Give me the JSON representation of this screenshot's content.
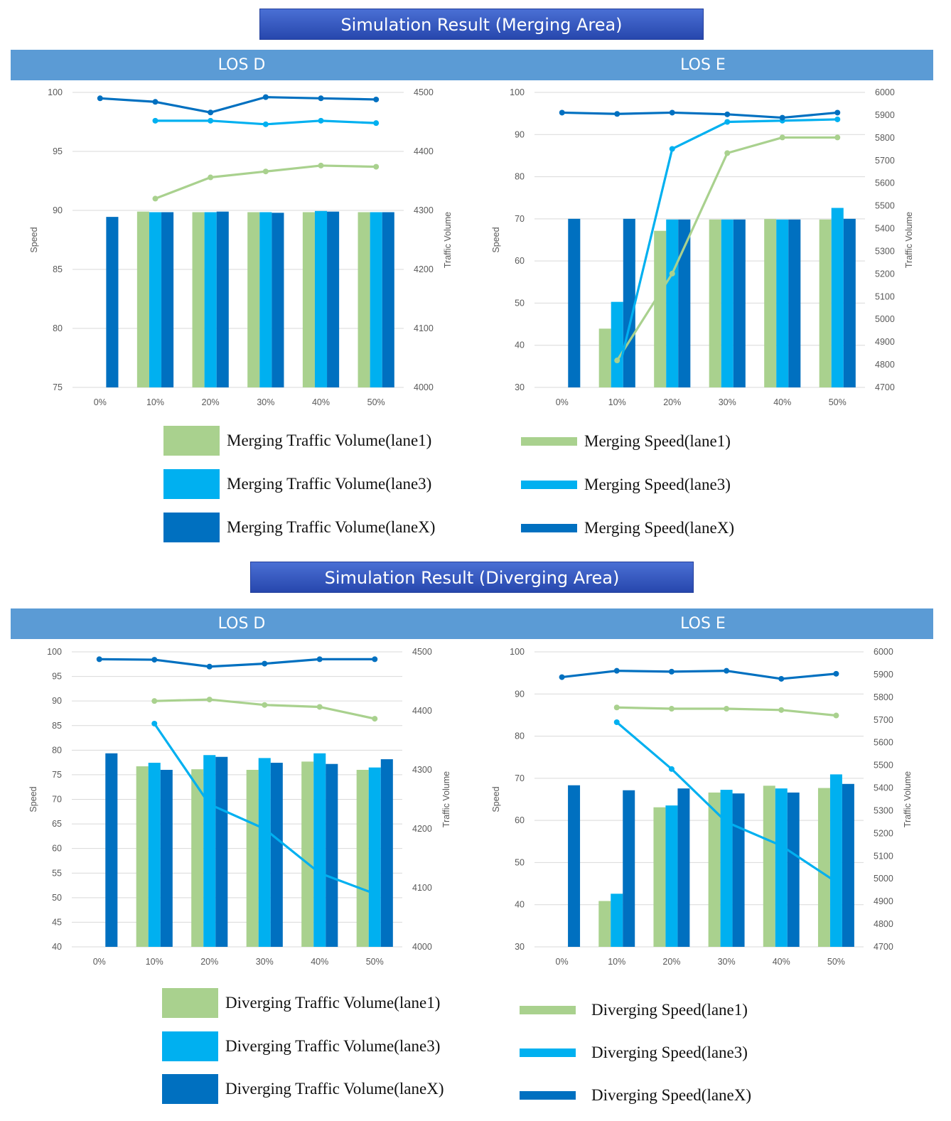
{
  "colors": {
    "lane1": "#a9d18e",
    "lane3": "#00b0f0",
    "laneX": "#0070c0"
  },
  "sections": [
    {
      "title": "Simulation Result (Merging Area)",
      "los_labels": [
        "LOS D",
        "LOS E"
      ],
      "legend": {
        "bars": [
          "Merging Traffic Volume(lane1)",
          "Merging Traffic Volume(lane3)",
          "Merging Traffic Volume(laneX)"
        ],
        "lines": [
          "Merging Speed(lane1)",
          "Merging Speed(lane3)",
          "Merging Speed(laneX)"
        ]
      }
    },
    {
      "title": "Simulation Result (Diverging Area)",
      "los_labels": [
        "LOS D",
        "LOS E"
      ],
      "legend": {
        "bars": [
          "Diverging Traffic Volume(lane1)",
          "Diverging Traffic Volume(lane3)",
          "Diverging Traffic Volume(laneX)"
        ],
        "lines": [
          "Diverging Speed(lane1)",
          "Diverging Speed(lane3)",
          "Diverging Speed(laneX)"
        ]
      }
    }
  ],
  "chart_data": [
    {
      "type": "bar",
      "id": "merge-d",
      "categories": [
        "0%",
        "10%",
        "20%",
        "30%",
        "40%",
        "50%"
      ],
      "ylabel": "Speed",
      "y2label": "Traffic Volume",
      "ylim": [
        75,
        100
      ],
      "yticks": [
        75,
        80,
        85,
        90,
        95,
        100
      ],
      "y2lim": [
        4000,
        4500
      ],
      "y2ticks": [
        4000,
        4100,
        4200,
        4300,
        4400,
        4500
      ],
      "grid": true,
      "bar_series": [
        {
          "name": "Merging Traffic Volume(lane1)",
          "values": [
            null,
            4298,
            4297,
            4297,
            4297,
            4297
          ]
        },
        {
          "name": "Merging Traffic Volume(lane3)",
          "values": [
            null,
            4297,
            4297,
            4297,
            4299,
            4297
          ]
        },
        {
          "name": "Merging Traffic Volume(laneX)",
          "values": [
            4289,
            4297,
            4298,
            4296,
            4298,
            4297
          ]
        }
      ],
      "line_series": [
        {
          "name": "Merging Speed(lane1)",
          "values": [
            null,
            91.0,
            92.8,
            93.3,
            93.8,
            93.7
          ]
        },
        {
          "name": "Merging Speed(lane3)",
          "values": [
            null,
            97.6,
            97.6,
            97.3,
            97.6,
            97.4
          ]
        },
        {
          "name": "Merging Speed(laneX)",
          "values": [
            99.5,
            99.2,
            98.3,
            99.6,
            99.5,
            99.4
          ]
        }
      ]
    },
    {
      "type": "bar",
      "id": "merge-e",
      "categories": [
        "0%",
        "10%",
        "20%",
        "30%",
        "40%",
        "50%"
      ],
      "ylabel": "Speed",
      "y2label": "Traffic Volume",
      "ylim": [
        30,
        100
      ],
      "yticks": [
        30,
        40,
        50,
        60,
        70,
        80,
        90,
        100
      ],
      "y2lim": [
        4700,
        6000
      ],
      "y2ticks": [
        4700,
        4800,
        4900,
        5000,
        5100,
        5200,
        5300,
        5400,
        5500,
        5600,
        5700,
        5800,
        5900,
        6000
      ],
      "grid": true,
      "bar_series": [
        {
          "name": "Merging Traffic Volume(lane1)",
          "values": [
            null,
            4959,
            5390,
            5440,
            5442,
            5440
          ]
        },
        {
          "name": "Merging Traffic Volume(lane3)",
          "values": [
            null,
            5077,
            5440,
            5440,
            5440,
            5491
          ]
        },
        {
          "name": "Merging Traffic Volume(laneX)",
          "values": [
            5443,
            5443,
            5440,
            5440,
            5440,
            5443
          ]
        }
      ],
      "line_series": [
        {
          "name": "Merging Speed(lane1)",
          "values": [
            null,
            36.4,
            57.0,
            85.6,
            89.3,
            89.3
          ]
        },
        {
          "name": "Merging Speed(lane3)",
          "values": [
            null,
            32.5,
            86.6,
            93.0,
            93.3,
            93.6
          ]
        },
        {
          "name": "Merging Speed(laneX)",
          "values": [
            95.2,
            94.9,
            95.2,
            94.8,
            94.0,
            95.2
          ]
        }
      ]
    },
    {
      "type": "bar",
      "id": "div-d",
      "categories": [
        "0%",
        "10%",
        "20%",
        "30%",
        "40%",
        "50%"
      ],
      "ylabel": "Speed",
      "y2label": "Traffic Volume",
      "ylim": [
        40,
        100
      ],
      "yticks": [
        40,
        45,
        50,
        55,
        60,
        65,
        70,
        75,
        80,
        85,
        90,
        95,
        100
      ],
      "y2lim": [
        4000,
        4500
      ],
      "y2ticks": [
        4000,
        4100,
        4200,
        4300,
        4400,
        4500
      ],
      "grid": true,
      "bar_series": [
        {
          "name": "Diverging Traffic Volume(lane1)",
          "values": [
            null,
            4306,
            4301,
            4300,
            4314,
            4300
          ]
        },
        {
          "name": "Diverging Traffic Volume(lane3)",
          "values": [
            null,
            4312,
            4325,
            4320,
            4328,
            4304
          ]
        },
        {
          "name": "Diverging Traffic Volume(laneX)",
          "values": [
            4328,
            4300,
            4322,
            4312,
            4310,
            4318
          ]
        }
      ],
      "line_series": [
        {
          "name": "Diverging Speed(lane1)",
          "values": [
            null,
            90.0,
            90.3,
            89.2,
            88.8,
            86.4
          ]
        },
        {
          "name": "Diverging Speed(lane3)",
          "values": [
            null,
            85.4,
            69.0,
            64.0,
            55.0,
            50.8
          ]
        },
        {
          "name": "Diverging Speed(laneX)",
          "values": [
            98.5,
            98.4,
            97.0,
            97.6,
            98.5,
            98.5
          ]
        }
      ]
    },
    {
      "type": "bar",
      "id": "div-e",
      "categories": [
        "0%",
        "10%",
        "20%",
        "30%",
        "40%",
        "50%"
      ],
      "ylabel": "Speed",
      "y2label": "Traffic Volume",
      "ylim": [
        30,
        100
      ],
      "yticks": [
        30,
        40,
        50,
        60,
        70,
        80,
        90,
        100
      ],
      "y2lim": [
        4700,
        6000
      ],
      "y2ticks": [
        4700,
        4800,
        4900,
        5000,
        5100,
        5200,
        5300,
        5400,
        5500,
        5600,
        5700,
        5800,
        5900,
        6000
      ],
      "grid": true,
      "bar_series": [
        {
          "name": "Diverging Traffic Volume(lane1)",
          "values": [
            null,
            4902,
            5315,
            5380,
            5410,
            5400
          ]
        },
        {
          "name": "Diverging Traffic Volume(lane3)",
          "values": [
            null,
            4934,
            5323,
            5392,
            5398,
            5460
          ]
        },
        {
          "name": "Diverging Traffic Volume(laneX)",
          "values": [
            5412,
            5390,
            5398,
            5376,
            5380,
            5418
          ]
        }
      ],
      "line_series": [
        {
          "name": "Diverging Speed(lane1)",
          "values": [
            null,
            86.8,
            86.5,
            86.5,
            86.2,
            84.9
          ]
        },
        {
          "name": "Diverging Speed(lane3)",
          "values": [
            null,
            83.3,
            72.2,
            59.6,
            54.0,
            45.4
          ]
        },
        {
          "name": "Diverging Speed(laneX)",
          "values": [
            94.0,
            95.5,
            95.3,
            95.5,
            93.6,
            94.8
          ]
        }
      ]
    }
  ]
}
